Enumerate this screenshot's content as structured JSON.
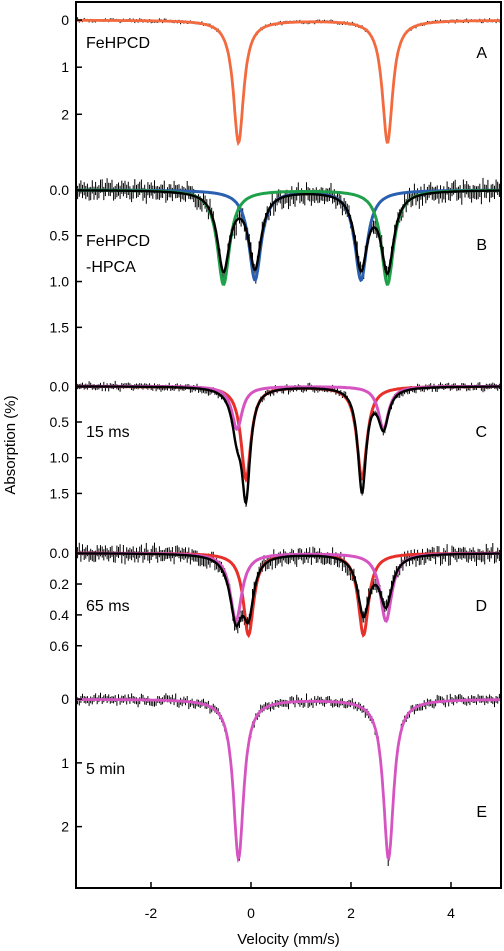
{
  "chart_data": {
    "type": "line",
    "xlabel": "Velocity (mm/s)",
    "ylabel": "Absorption (%)",
    "xlim": [
      -3.5,
      5.0
    ],
    "x_ticks": [
      -2,
      0,
      2,
      4
    ],
    "y_axis_inverted": true,
    "colors": {
      "data": "#000000",
      "orange": "#f26a3e",
      "blue": "#2b5fb0",
      "green": "#1fa04a",
      "red": "#e8302a",
      "magenta": "#d654c2"
    },
    "panels": [
      {
        "letter": "A",
        "label": [
          "FeHPCD"
        ],
        "ylim": [
          -0.3,
          2.95
        ],
        "y_ticks": [
          0,
          1,
          2
        ],
        "y_tick_labels": [
          "0",
          "1",
          "2"
        ],
        "noise": 0.03,
        "total": {
          "color": "orange",
          "peaks": [
            {
              "x": -0.25,
              "d": 2.6,
              "w": 0.25
            },
            {
              "x": 2.73,
              "d": 2.6,
              "w": 0.25
            }
          ]
        },
        "components": []
      },
      {
        "letter": "B",
        "label": [
          "FeHPCD",
          "-HPCA"
        ],
        "ylim": [
          -0.25,
          1.9
        ],
        "y_ticks": [
          0,
          0.5,
          1.0,
          1.5
        ],
        "y_tick_labels": [
          "0.0",
          "0.5",
          "1.0",
          "1.5"
        ],
        "noise": 0.08,
        "total": {
          "color": "data",
          "peaks": [
            {
              "x": -0.55,
              "d": 0.85,
              "w": 0.3
            },
            {
              "x": 0.08,
              "d": 0.82,
              "w": 0.3
            },
            {
              "x": 2.2,
              "d": 0.82,
              "w": 0.3
            },
            {
              "x": 2.73,
              "d": 0.85,
              "w": 0.3
            }
          ]
        },
        "components": [
          {
            "color": "blue",
            "peaks": [
              {
                "x": 0.08,
                "d": 0.98,
                "w": 0.3
              },
              {
                "x": 2.2,
                "d": 0.98,
                "w": 0.3
              }
            ]
          },
          {
            "color": "green",
            "peaks": [
              {
                "x": -0.55,
                "d": 1.03,
                "w": 0.3
              },
              {
                "x": 2.73,
                "d": 1.03,
                "w": 0.3
              }
            ]
          }
        ]
      },
      {
        "letter": "C",
        "label": [
          "15 ms"
        ],
        "ylim": [
          -0.2,
          1.9
        ],
        "y_ticks": [
          0,
          0.5,
          1.0,
          1.5
        ],
        "y_tick_labels": [
          "0.0",
          "0.5",
          "1.0",
          "1.5"
        ],
        "noise": 0.04,
        "total": {
          "color": "data",
          "peaks": [
            {
              "x": -0.28,
              "d": 0.55,
              "w": 0.25
            },
            {
              "x": -0.1,
              "d": 1.45,
              "w": 0.2
            },
            {
              "x": 2.22,
              "d": 1.45,
              "w": 0.2
            },
            {
              "x": 2.65,
              "d": 0.55,
              "w": 0.25
            }
          ]
        },
        "components": [
          {
            "color": "red",
            "peaks": [
              {
                "x": -0.1,
                "d": 1.3,
                "w": 0.24
              },
              {
                "x": 2.22,
                "d": 1.3,
                "w": 0.24
              }
            ]
          },
          {
            "color": "magenta",
            "peaks": [
              {
                "x": -0.28,
                "d": 0.6,
                "w": 0.25
              },
              {
                "x": 2.65,
                "d": 0.6,
                "w": 0.25
              }
            ]
          }
        ]
      },
      {
        "letter": "D",
        "label": [
          "65 ms"
        ],
        "ylim": [
          -0.15,
          0.77
        ],
        "y_ticks": [
          0,
          0.2,
          0.4,
          0.6
        ],
        "y_tick_labels": [
          "0.0",
          "0.2",
          "0.4",
          "0.6"
        ],
        "noise": 0.04,
        "total": {
          "color": "data",
          "peaks": [
            {
              "x": -0.3,
              "d": 0.4,
              "w": 0.3
            },
            {
              "x": -0.05,
              "d": 0.34,
              "w": 0.25
            },
            {
              "x": 2.25,
              "d": 0.38,
              "w": 0.28
            },
            {
              "x": 2.7,
              "d": 0.32,
              "w": 0.3
            }
          ]
        },
        "components": [
          {
            "color": "red",
            "peaks": [
              {
                "x": -0.05,
                "d": 0.53,
                "w": 0.25
              },
              {
                "x": 2.25,
                "d": 0.53,
                "w": 0.25
              }
            ]
          },
          {
            "color": "magenta",
            "peaks": [
              {
                "x": -0.3,
                "d": 0.44,
                "w": 0.28
              },
              {
                "x": 2.7,
                "d": 0.44,
                "w": 0.28
              }
            ]
          }
        ]
      },
      {
        "letter": "E",
        "label": [
          "5 min"
        ],
        "ylim": [
          -0.3,
          2.9
        ],
        "y_ticks": [
          0,
          1,
          2
        ],
        "y_tick_labels": [
          "0",
          "1",
          "2"
        ],
        "noise": 0.06,
        "total": {
          "color": "magenta",
          "peaks": [
            {
              "x": -0.25,
              "d": 2.5,
              "w": 0.25
            },
            {
              "x": 2.75,
              "d": 2.5,
              "w": 0.25
            }
          ]
        },
        "components": []
      }
    ]
  }
}
